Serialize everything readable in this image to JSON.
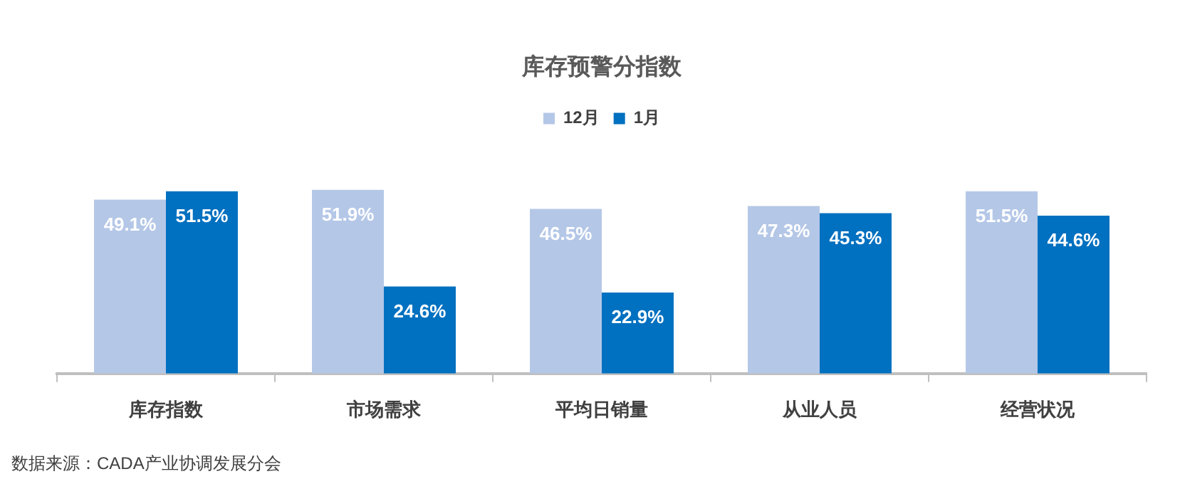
{
  "chart_data": {
    "type": "bar",
    "title": "库存预警分指数",
    "legend": "top",
    "tick_labels": "x",
    "categories": [
      "库存指数",
      "市场需求",
      "平均日销量",
      "从业人员",
      "经营状况"
    ],
    "series": [
      {
        "name": "12月",
        "color": "#b4c7e7",
        "values": [
          49.1,
          51.9,
          46.5,
          47.3,
          51.5
        ],
        "value_labels": [
          "49.1%",
          "51.9%",
          "46.5%",
          "47.3%",
          "51.5%"
        ]
      },
      {
        "name": "1月",
        "color": "#0070c0",
        "values": [
          51.5,
          24.6,
          22.9,
          45.3,
          44.6
        ],
        "value_labels": [
          "51.5%",
          "24.6%",
          "22.9%",
          "45.3%",
          "44.6%"
        ]
      }
    ],
    "annotations": [
      "数据来源：CADA产业协调发展分会"
    ]
  }
}
